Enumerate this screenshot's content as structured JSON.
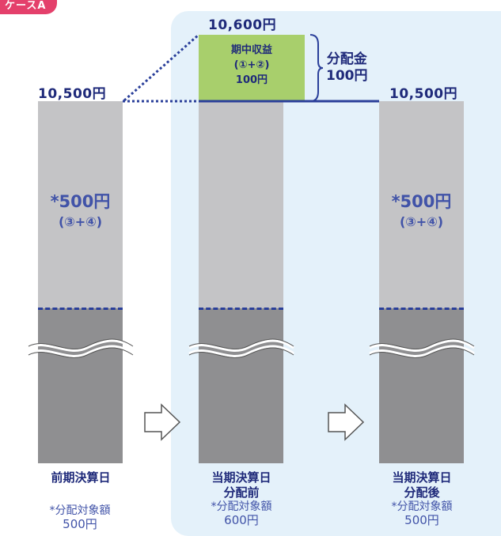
{
  "case_tag": "ケースA",
  "prices": {
    "left": "10,500円",
    "middle_top": "10,600円",
    "right": "10,500円"
  },
  "middle_box": {
    "line1": "期中収益",
    "line2": "(①+②)",
    "line3": "100円"
  },
  "distribution": {
    "line1": "分配金",
    "line2": "100円"
  },
  "left_bar": {
    "amount": "*500円",
    "formula": "(③+④)"
  },
  "right_bar": {
    "amount": "*500円",
    "formula": "(③+④)"
  },
  "captions": {
    "left": {
      "title": "前期決算日",
      "note_label": "*分配対象額",
      "note_amount": "500円"
    },
    "middle": {
      "title1": "当期決算日",
      "title2": "分配前",
      "note_label": "*分配対象額",
      "note_amount": "600円"
    },
    "right": {
      "title1": "当期決算日",
      "title2": "分配後",
      "note_label": "*分配対象額",
      "note_amount": "500円"
    }
  },
  "colors": {
    "panel": "#e4f1fa",
    "bar_light": "#c4c4c6",
    "bar_dark": "#8f8f91",
    "dash": "#2a3f9a",
    "green": "#a8cf6c",
    "tag": "#e4406b",
    "text": "#1f2a7a"
  },
  "icons": [
    "right-arrow-icon",
    "right-arrow-icon",
    "wave-break-icon"
  ]
}
